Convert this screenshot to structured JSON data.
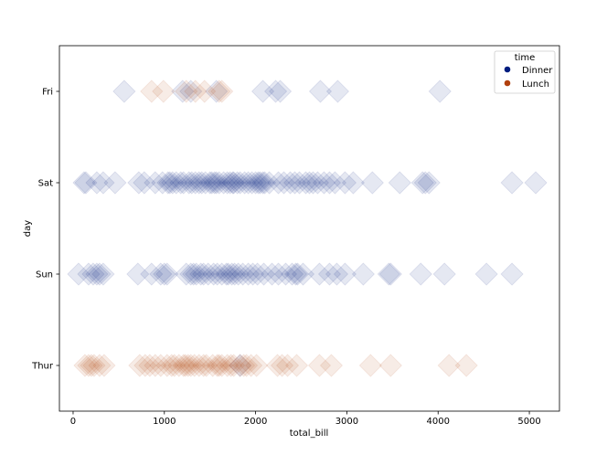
{
  "chart_data": {
    "type": "scatter",
    "xlabel": "total_bill",
    "ylabel": "day",
    "xlim": [
      -150,
      5330
    ],
    "xticks": [
      0,
      1000,
      2000,
      3000,
      4000,
      5000
    ],
    "xtick_labels": [
      "0",
      "1000",
      "2000",
      "3000",
      "4000",
      "5000"
    ],
    "categories": [
      "Fri",
      "Sat",
      "Sun",
      "Thur"
    ],
    "grid": false,
    "legend": {
      "title": "time",
      "placement": "top-right"
    },
    "marker": "diamond",
    "series": [
      {
        "name": "Dinner",
        "color": "#001c7f",
        "points": [
          [
            "Fri",
            560
          ],
          [
            "Fri",
            1200
          ],
          [
            "Fri",
            1290
          ],
          [
            "Fri",
            1570
          ],
          [
            "Fri",
            2080
          ],
          [
            "Fri",
            2220
          ],
          [
            "Fri",
            2270
          ],
          [
            "Fri",
            2710
          ],
          [
            "Fri",
            2900
          ],
          [
            "Fri",
            4020
          ],
          [
            "Sat",
            120
          ],
          [
            "Sat",
            140
          ],
          [
            "Sat",
            260
          ],
          [
            "Sat",
            330
          ],
          [
            "Sat",
            460
          ],
          [
            "Sat",
            720
          ],
          [
            "Sat",
            780
          ],
          [
            "Sat",
            900
          ],
          [
            "Sat",
            980
          ],
          [
            "Sat",
            1040
          ],
          [
            "Sat",
            1060
          ],
          [
            "Sat",
            1090
          ],
          [
            "Sat",
            1130
          ],
          [
            "Sat",
            1180
          ],
          [
            "Sat",
            1210
          ],
          [
            "Sat",
            1270
          ],
          [
            "Sat",
            1300
          ],
          [
            "Sat",
            1340
          ],
          [
            "Sat",
            1380
          ],
          [
            "Sat",
            1410
          ],
          [
            "Sat",
            1450
          ],
          [
            "Sat",
            1500
          ],
          [
            "Sat",
            1520
          ],
          [
            "Sat",
            1550
          ],
          [
            "Sat",
            1570
          ],
          [
            "Sat",
            1600
          ],
          [
            "Sat",
            1650
          ],
          [
            "Sat",
            1690
          ],
          [
            "Sat",
            1720
          ],
          [
            "Sat",
            1750
          ],
          [
            "Sat",
            1760
          ],
          [
            "Sat",
            1800
          ],
          [
            "Sat",
            1830
          ],
          [
            "Sat",
            1880
          ],
          [
            "Sat",
            1920
          ],
          [
            "Sat",
            1960
          ],
          [
            "Sat",
            2000
          ],
          [
            "Sat",
            2030
          ],
          [
            "Sat",
            2050
          ],
          [
            "Sat",
            2080
          ],
          [
            "Sat",
            2100
          ],
          [
            "Sat",
            2150
          ],
          [
            "Sat",
            2250
          ],
          [
            "Sat",
            2310
          ],
          [
            "Sat",
            2380
          ],
          [
            "Sat",
            2430
          ],
          [
            "Sat",
            2480
          ],
          [
            "Sat",
            2550
          ],
          [
            "Sat",
            2590
          ],
          [
            "Sat",
            2630
          ],
          [
            "Sat",
            2680
          ],
          [
            "Sat",
            2750
          ],
          [
            "Sat",
            2810
          ],
          [
            "Sat",
            2870
          ],
          [
            "Sat",
            2980
          ],
          [
            "Sat",
            3070
          ],
          [
            "Sat",
            3280
          ],
          [
            "Sat",
            3580
          ],
          [
            "Sat",
            3830
          ],
          [
            "Sat",
            3860
          ],
          [
            "Sat",
            3900
          ],
          [
            "Sat",
            4810
          ],
          [
            "Sat",
            5070
          ],
          [
            "Sun",
            60
          ],
          [
            "Sun",
            170
          ],
          [
            "Sun",
            220
          ],
          [
            "Sun",
            260
          ],
          [
            "Sun",
            290
          ],
          [
            "Sun",
            330
          ],
          [
            "Sun",
            710
          ],
          [
            "Sun",
            860
          ],
          [
            "Sun",
            960
          ],
          [
            "Sun",
            1000
          ],
          [
            "Sun",
            1030
          ],
          [
            "Sun",
            1240
          ],
          [
            "Sun",
            1290
          ],
          [
            "Sun",
            1320
          ],
          [
            "Sun",
            1350
          ],
          [
            "Sun",
            1400
          ],
          [
            "Sun",
            1430
          ],
          [
            "Sun",
            1480
          ],
          [
            "Sun",
            1540
          ],
          [
            "Sun",
            1580
          ],
          [
            "Sun",
            1630
          ],
          [
            "Sun",
            1680
          ],
          [
            "Sun",
            1700
          ],
          [
            "Sun",
            1740
          ],
          [
            "Sun",
            1770
          ],
          [
            "Sun",
            1810
          ],
          [
            "Sun",
            1860
          ],
          [
            "Sun",
            1920
          ],
          [
            "Sun",
            1970
          ],
          [
            "Sun",
            2020
          ],
          [
            "Sun",
            2090
          ],
          [
            "Sun",
            2180
          ],
          [
            "Sun",
            2250
          ],
          [
            "Sun",
            2330
          ],
          [
            "Sun",
            2400
          ],
          [
            "Sun",
            2440
          ],
          [
            "Sun",
            2460
          ],
          [
            "Sun",
            2520
          ],
          [
            "Sun",
            2700
          ],
          [
            "Sun",
            2810
          ],
          [
            "Sun",
            2890
          ],
          [
            "Sun",
            2980
          ],
          [
            "Sun",
            3180
          ],
          [
            "Sun",
            3460
          ],
          [
            "Sun",
            3480
          ],
          [
            "Sun",
            3810
          ],
          [
            "Sun",
            4070
          ],
          [
            "Sun",
            4530
          ],
          [
            "Sun",
            4810
          ],
          [
            "Thur",
            1830
          ]
        ]
      },
      {
        "name": "Lunch",
        "color": "#b1400d",
        "points": [
          [
            "Fri",
            860
          ],
          [
            "Fri",
            990
          ],
          [
            "Fri",
            1240
          ],
          [
            "Fri",
            1340
          ],
          [
            "Fri",
            1440
          ],
          [
            "Fri",
            1600
          ],
          [
            "Fri",
            1630
          ],
          [
            "Thur",
            130
          ],
          [
            "Thur",
            170
          ],
          [
            "Thur",
            200
          ],
          [
            "Thur",
            230
          ],
          [
            "Thur",
            290
          ],
          [
            "Thur",
            340
          ],
          [
            "Thur",
            730
          ],
          [
            "Thur",
            790
          ],
          [
            "Thur",
            840
          ],
          [
            "Thur",
            900
          ],
          [
            "Thur",
            960
          ],
          [
            "Thur",
            1030
          ],
          [
            "Thur",
            1080
          ],
          [
            "Thur",
            1110
          ],
          [
            "Thur",
            1160
          ],
          [
            "Thur",
            1210
          ],
          [
            "Thur",
            1230
          ],
          [
            "Thur",
            1260
          ],
          [
            "Thur",
            1290
          ],
          [
            "Thur",
            1330
          ],
          [
            "Thur",
            1380
          ],
          [
            "Thur",
            1430
          ],
          [
            "Thur",
            1460
          ],
          [
            "Thur",
            1530
          ],
          [
            "Thur",
            1580
          ],
          [
            "Thur",
            1600
          ],
          [
            "Thur",
            1630
          ],
          [
            "Thur",
            1690
          ],
          [
            "Thur",
            1730
          ],
          [
            "Thur",
            1760
          ],
          [
            "Thur",
            1830
          ],
          [
            "Thur",
            1870
          ],
          [
            "Thur",
            1900
          ],
          [
            "Thur",
            1950
          ],
          [
            "Thur",
            2010
          ],
          [
            "Thur",
            2240
          ],
          [
            "Thur",
            2290
          ],
          [
            "Thur",
            2350
          ],
          [
            "Thur",
            2450
          ],
          [
            "Thur",
            2700
          ],
          [
            "Thur",
            2830
          ],
          [
            "Thur",
            3260
          ],
          [
            "Thur",
            3480
          ],
          [
            "Thur",
            4120
          ],
          [
            "Thur",
            4310
          ]
        ]
      }
    ]
  }
}
